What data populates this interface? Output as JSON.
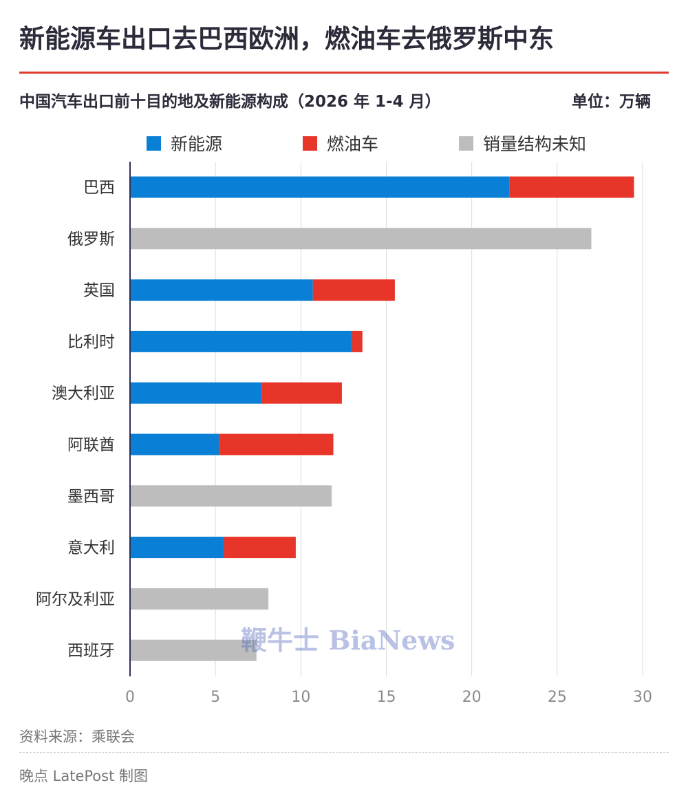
{
  "headline": "新能源车出口去巴西欧洲，燃油车去俄罗斯中东",
  "subtitle": "中国汽车出口前十目的地及新能源构成（2026 年 1-4 月）",
  "unit_label": "单位：万辆",
  "watermark": "鞭牛士 BiaNews",
  "source": "资料来源：乘联会",
  "credit": "晚点 LatePost 制图",
  "colors": {
    "nev": "#0a7fd6",
    "ice": "#e8352a",
    "unknown": "#bdbdbd",
    "axis": "#2b2f5a",
    "grid": "#dcdcdc"
  },
  "chart_data": {
    "type": "bar",
    "orientation": "horizontal",
    "stacked": true,
    "title": "中国汽车出口前十目的地及新能源构成（2026 年 1-4 月）",
    "unit": "万辆",
    "categories": [
      "巴西",
      "俄罗斯",
      "英国",
      "比利时",
      "澳大利亚",
      "阿联酋",
      "墨西哥",
      "意大利",
      "阿尔及利亚",
      "西班牙"
    ],
    "series": [
      {
        "name": "新能源",
        "color": "#0a7fd6",
        "values": [
          22.2,
          0,
          10.7,
          13.0,
          7.7,
          5.2,
          0,
          5.5,
          0,
          0
        ]
      },
      {
        "name": "燃油车",
        "color": "#e8352a",
        "values": [
          7.3,
          0,
          4.8,
          0.6,
          4.7,
          6.7,
          0,
          4.2,
          0,
          0
        ]
      },
      {
        "name": "销量结构未知",
        "color": "#bdbdbd",
        "values": [
          0,
          27.0,
          0,
          0,
          0,
          0,
          11.8,
          0,
          8.1,
          7.4
        ]
      }
    ],
    "xlim": [
      0,
      30
    ],
    "xticks": [
      0,
      5,
      10,
      15,
      20,
      25,
      30
    ],
    "grid": true,
    "legend_position": "top"
  }
}
